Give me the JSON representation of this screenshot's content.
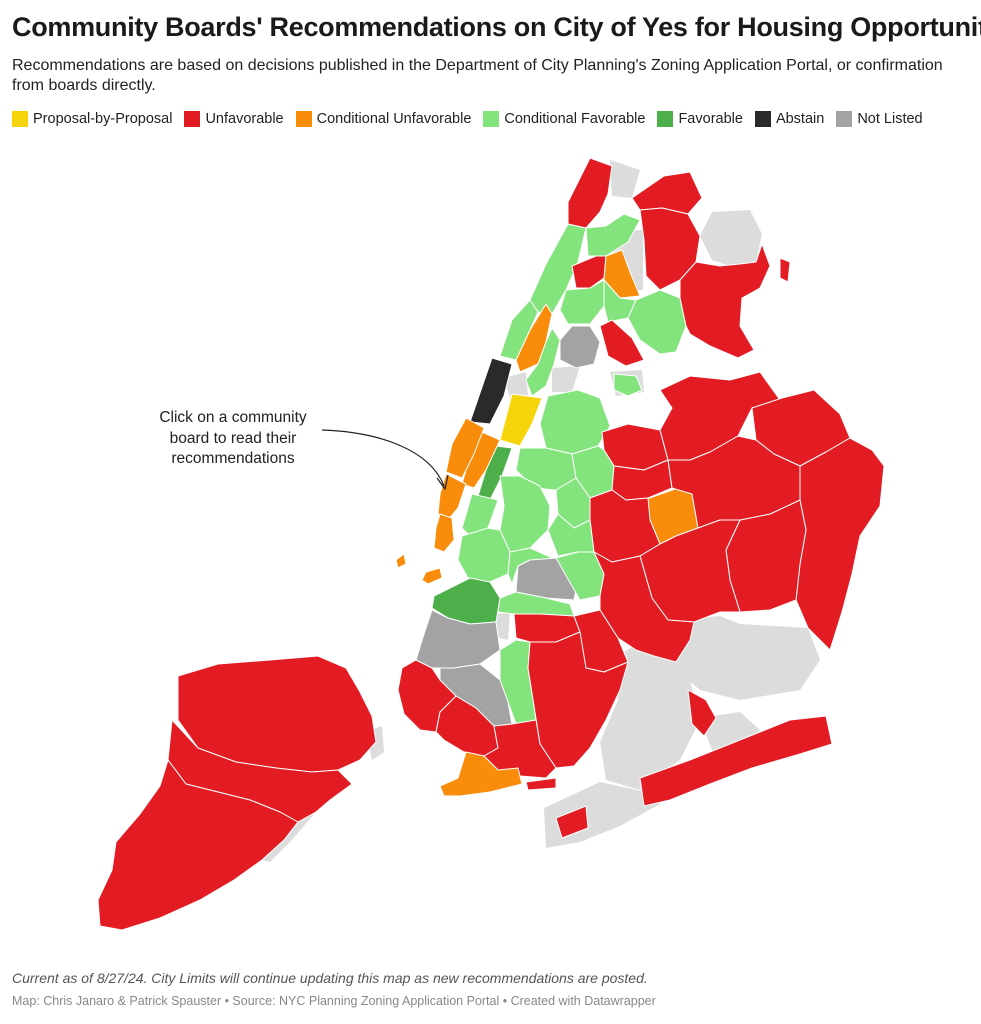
{
  "header": {
    "title": "Community Boards' Recommendations on City of Yes for Housing Opportunity",
    "subtitle": "Recommendations are based on decisions published in the Department of City Planning's Zoning Application Portal, or confirmation from boards directly."
  },
  "legend": [
    {
      "label": "Proposal-by-Proposal",
      "color": "#f5d50a"
    },
    {
      "label": "Unfavorable",
      "color": "#e31c23"
    },
    {
      "label": "Conditional Unfavorable",
      "color": "#f98c0a"
    },
    {
      "label": "Conditional Favorable",
      "color": "#83e37d"
    },
    {
      "label": "Favorable",
      "color": "#4caf4a"
    },
    {
      "label": "Abstain",
      "color": "#2a2a2a"
    },
    {
      "label": "Not Listed",
      "color": "#a3a3a3"
    }
  ],
  "colors": {
    "background_land": "#dcdcdc",
    "water": "#ffffff"
  },
  "annotation": {
    "text": "Click on a community board to read their recommendations"
  },
  "footer": {
    "note": "Current as of 8/27/24. City Limits will continue updating this map as new recommendations are posted.",
    "credits": "Map: Chris Janaro & Patrick Spauster • Source: NYC Planning Zoning Application Portal • Created with Datawrapper"
  }
}
